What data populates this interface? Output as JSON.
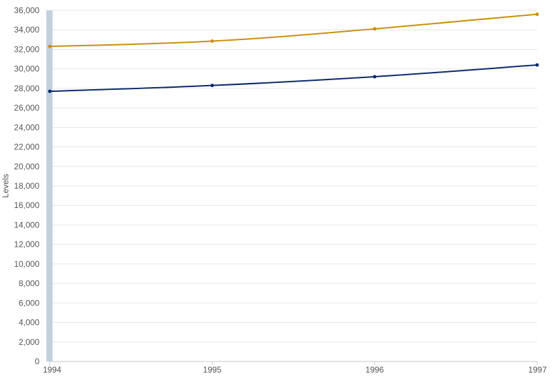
{
  "chart_data": {
    "type": "line",
    "title": "",
    "xlabel": "",
    "ylabel": "Levels",
    "x": [
      "1994",
      "1995",
      "1996",
      "1997"
    ],
    "ylim": [
      0,
      36000
    ],
    "yticks": [
      "0",
      "2,000",
      "4,000",
      "6,000",
      "8,000",
      "10,000",
      "12,000",
      "14,000",
      "16,000",
      "18,000",
      "20,000",
      "22,000",
      "24,000",
      "26,000",
      "28,000",
      "30,000",
      "32,000",
      "34,000",
      "36,000"
    ],
    "grid": true,
    "highlight_band": "1994",
    "series": [
      {
        "color": "#c8900c",
        "values": [
          32300,
          32850,
          34100,
          35600
        ]
      },
      {
        "color": "#0b2a6b",
        "values": [
          27700,
          28300,
          29200,
          30400
        ]
      }
    ]
  }
}
